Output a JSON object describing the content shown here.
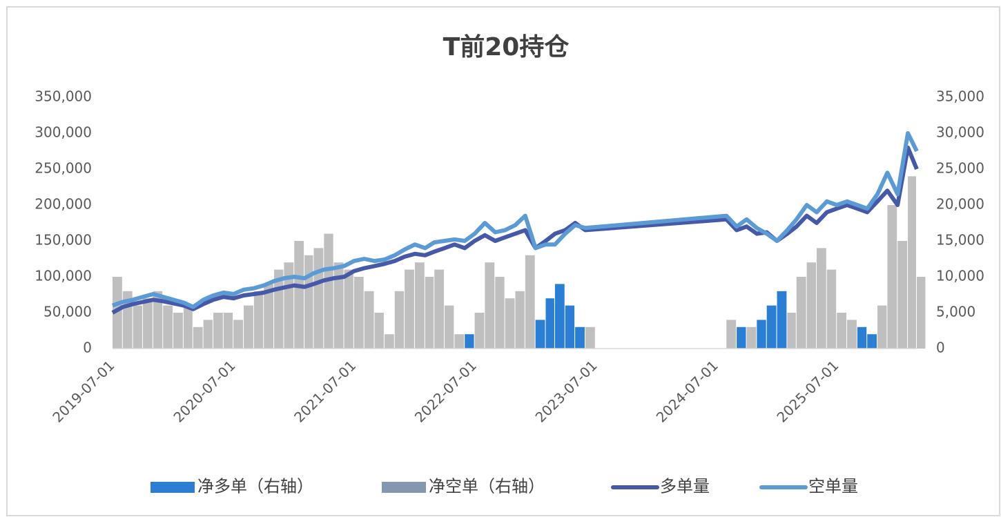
{
  "chart_data": {
    "type": "bar-line",
    "title": "T前20持仓",
    "x": [
      "2019-07-01",
      "2019-08-01",
      "2019-09-01",
      "2019-10-01",
      "2019-11-01",
      "2019-12-01",
      "2020-01-01",
      "2020-02-01",
      "2020-03-01",
      "2020-04-01",
      "2020-05-01",
      "2020-06-01",
      "2020-07-01",
      "2020-08-01",
      "2020-09-01",
      "2020-10-01",
      "2020-11-01",
      "2020-12-01",
      "2021-01-01",
      "2021-02-01",
      "2021-03-01",
      "2021-04-01",
      "2021-05-01",
      "2021-06-01",
      "2021-07-01",
      "2021-08-01",
      "2021-09-01",
      "2021-10-01",
      "2021-11-01",
      "2021-12-01",
      "2022-01-01",
      "2022-02-01",
      "2022-03-01",
      "2022-04-01",
      "2022-05-01",
      "2022-06-01",
      "2022-07-01",
      "2022-08-01",
      "2022-09-01",
      "2022-10-01",
      "2022-11-01",
      "2022-12-01",
      "2023-01-01",
      "2023-02-01",
      "2023-03-01",
      "2023-04-01",
      "2023-05-01",
      "2023-06-01",
      "2024-08-01",
      "2024-09-01",
      "2024-10-01",
      "2024-11-01",
      "2024-12-01",
      "2025-01-01",
      "2025-02-01",
      "2025-03-01",
      "2025-04-01",
      "2025-05-01",
      "2025-06-01",
      "2025-07-01",
      "2025-08-01",
      "2025-09-01",
      "2025-10-01",
      "2025-11-01",
      "2025-12-01",
      "2026-01-01",
      "2026-02-01",
      "2026-02-28"
    ],
    "series": [
      {
        "name": "净多单（右轴）",
        "kind": "bar",
        "axis": "y2",
        "color": "#2a7fd4",
        "values": [
          null,
          null,
          null,
          null,
          null,
          null,
          null,
          null,
          null,
          null,
          null,
          null,
          null,
          null,
          null,
          null,
          null,
          null,
          null,
          null,
          null,
          null,
          null,
          null,
          null,
          null,
          null,
          null,
          null,
          null,
          null,
          null,
          null,
          null,
          null,
          2000,
          null,
          null,
          null,
          null,
          null,
          null,
          4000,
          7000,
          9000,
          6000,
          3000,
          null,
          null,
          3000,
          null,
          4000,
          6000,
          8000,
          null,
          null,
          null,
          null,
          null,
          null,
          null,
          3000,
          2000,
          null,
          null,
          null,
          null,
          null
        ]
      },
      {
        "name": "净空单（右轴）",
        "kind": "bar",
        "axis": "y2",
        "color": "#bfbfbf",
        "values": [
          10000,
          8000,
          6000,
          7000,
          8000,
          6000,
          5000,
          6000,
          3000,
          4000,
          5000,
          5000,
          4000,
          6000,
          8000,
          9000,
          11000,
          12000,
          15000,
          13000,
          14000,
          16000,
          12000,
          11000,
          10000,
          8000,
          5000,
          2000,
          8000,
          11000,
          12000,
          10000,
          11000,
          6000,
          2000,
          null,
          5000,
          12000,
          10000,
          7000,
          8000,
          13000,
          null,
          null,
          null,
          null,
          null,
          3000,
          4000,
          null,
          3000,
          null,
          null,
          null,
          5000,
          10000,
          12000,
          14000,
          11000,
          5000,
          4000,
          null,
          null,
          6000,
          20000,
          15000,
          24000,
          10000
        ]
      },
      {
        "name": "多单量",
        "kind": "line",
        "color": "#4659a8",
        "values": [
          50000,
          58000,
          62000,
          65000,
          68000,
          66000,
          63000,
          60000,
          55000,
          62000,
          68000,
          72000,
          70000,
          74000,
          76000,
          78000,
          82000,
          85000,
          88000,
          86000,
          90000,
          95000,
          98000,
          100000,
          108000,
          112000,
          115000,
          118000,
          122000,
          128000,
          132000,
          130000,
          135000,
          140000,
          145000,
          140000,
          150000,
          158000,
          150000,
          155000,
          160000,
          165000,
          140000,
          150000,
          160000,
          165000,
          175000,
          165000,
          180000,
          165000,
          170000,
          160000,
          162000,
          150000,
          160000,
          170000,
          185000,
          175000,
          190000,
          195000,
          200000,
          195000,
          190000,
          205000,
          220000,
          200000,
          280000,
          250000
        ]
      },
      {
        "name": "空单量",
        "kind": "line",
        "color": "#5b9bd5",
        "values": [
          60000,
          65000,
          68000,
          72000,
          76000,
          72000,
          68000,
          64000,
          58000,
          68000,
          74000,
          78000,
          76000,
          82000,
          84000,
          88000,
          94000,
          98000,
          100000,
          98000,
          105000,
          110000,
          112000,
          115000,
          122000,
          125000,
          122000,
          124000,
          130000,
          138000,
          145000,
          140000,
          148000,
          150000,
          152000,
          150000,
          160000,
          175000,
          162000,
          165000,
          172000,
          185000,
          140000,
          145000,
          145000,
          160000,
          172000,
          168000,
          185000,
          170000,
          180000,
          168000,
          160000,
          150000,
          165000,
          180000,
          200000,
          190000,
          205000,
          200000,
          205000,
          200000,
          195000,
          215000,
          245000,
          215000,
          300000,
          275000
        ]
      }
    ],
    "xlim": [
      "2019-07-01",
      "2026-02-28"
    ],
    "xticks": [
      "2019-07-01",
      "2020-07-01",
      "2021-07-01",
      "2022-07-01",
      "2023-07-01",
      "2024-07-01",
      "2025-07-01"
    ],
    "ylim": [
      0,
      350000
    ],
    "yticks": [
      0,
      {
        "value": 50000,
        "label": "50,000"
      },
      {
        "value": 100000,
        "label": "100,000"
      },
      {
        "value": 150000,
        "label": "150,000"
      },
      {
        "value": 200000,
        "label": "200,000"
      },
      {
        "value": 250000,
        "label": "250,000"
      },
      {
        "value": 300000,
        "label": "300,000"
      },
      {
        "value": 350000,
        "label": "350,000"
      }
    ],
    "y2lim": [
      0,
      35000
    ],
    "y2ticks": [
      0,
      {
        "value": 5000,
        "label": "5,000"
      },
      {
        "value": 10000,
        "label": "10,000"
      },
      {
        "value": 15000,
        "label": "15,000"
      },
      {
        "value": 20000,
        "label": "20,000"
      },
      {
        "value": 25000,
        "label": "25,000"
      },
      {
        "value": 30000,
        "label": "30,000"
      },
      {
        "value": 35000,
        "label": "35,000"
      }
    ],
    "grid": false,
    "legend": "bottom"
  }
}
